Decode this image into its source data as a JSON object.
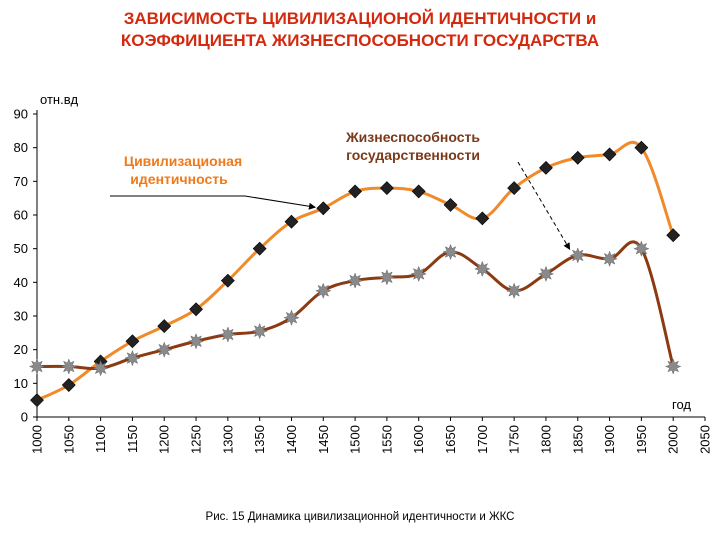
{
  "title_line1": "ЗАВИСИМОСТЬ ЦИВИЛИЗАЦИОНОЙ ИДЕНТИЧНОСТИ и",
  "title_line2": "КОЭФФИЦИЕНТА ЖИЗНЕСПОСОБНОСТИ ГОСУДАРСТВА",
  "caption": "Рис. 15   Динамика цивилизационной идентичности и ЖКС",
  "colors": {
    "title": "#d32a0f",
    "civ_line": "#f08a2a",
    "viab_line": "#8b3a12",
    "civ_marker": "#222222",
    "viab_marker": "#8a8a8a"
  },
  "chart_data": {
    "type": "line",
    "title": "ЗАВИСИМОСТЬ ЦИВИЛИЗАЦИОНОЙ ИДЕНТИЧНОСТИ и КОЭФФИЦИЕНТА ЖИЗНЕСПОСОБНОСТИ ГОСУДАРСТВА",
    "xlabel": "год",
    "ylabel": "отн.вд",
    "xlim": [
      1000,
      2050
    ],
    "ylim": [
      0,
      90
    ],
    "x_ticks": [
      1000,
      1050,
      1100,
      1150,
      1200,
      1250,
      1300,
      1350,
      1400,
      1450,
      1500,
      1550,
      1600,
      1650,
      1700,
      1750,
      1800,
      1850,
      1900,
      1950,
      2000,
      2050
    ],
    "y_ticks": [
      0,
      10,
      20,
      30,
      40,
      50,
      60,
      70,
      80,
      90
    ],
    "grid": false,
    "x": [
      1000,
      1050,
      1100,
      1150,
      1200,
      1250,
      1300,
      1350,
      1400,
      1450,
      1500,
      1550,
      1600,
      1650,
      1700,
      1750,
      1800,
      1850,
      1900,
      1950,
      2000
    ],
    "series": [
      {
        "name": "Цивилизационая идентичность",
        "marker": "diamond",
        "values": [
          5,
          9.5,
          16.5,
          22.5,
          27,
          32,
          40.5,
          50,
          58,
          62,
          67,
          68,
          67,
          63,
          59,
          68,
          74,
          77,
          78,
          80,
          54
        ]
      },
      {
        "name": "Жизнеспособность государственности",
        "marker": "star",
        "values": [
          15,
          15,
          14.5,
          17.5,
          20,
          22.5,
          24.5,
          25.5,
          29.5,
          37.5,
          40.5,
          41.5,
          42.5,
          49,
          44,
          37.5,
          42.5,
          48,
          47,
          50,
          15
        ]
      }
    ],
    "annotations": [
      {
        "lines": [
          "Цивилизационая",
          "идентичность"
        ],
        "series": 0
      },
      {
        "lines": [
          "Жизнеспособность",
          "государственности"
        ],
        "series": 1
      }
    ]
  }
}
